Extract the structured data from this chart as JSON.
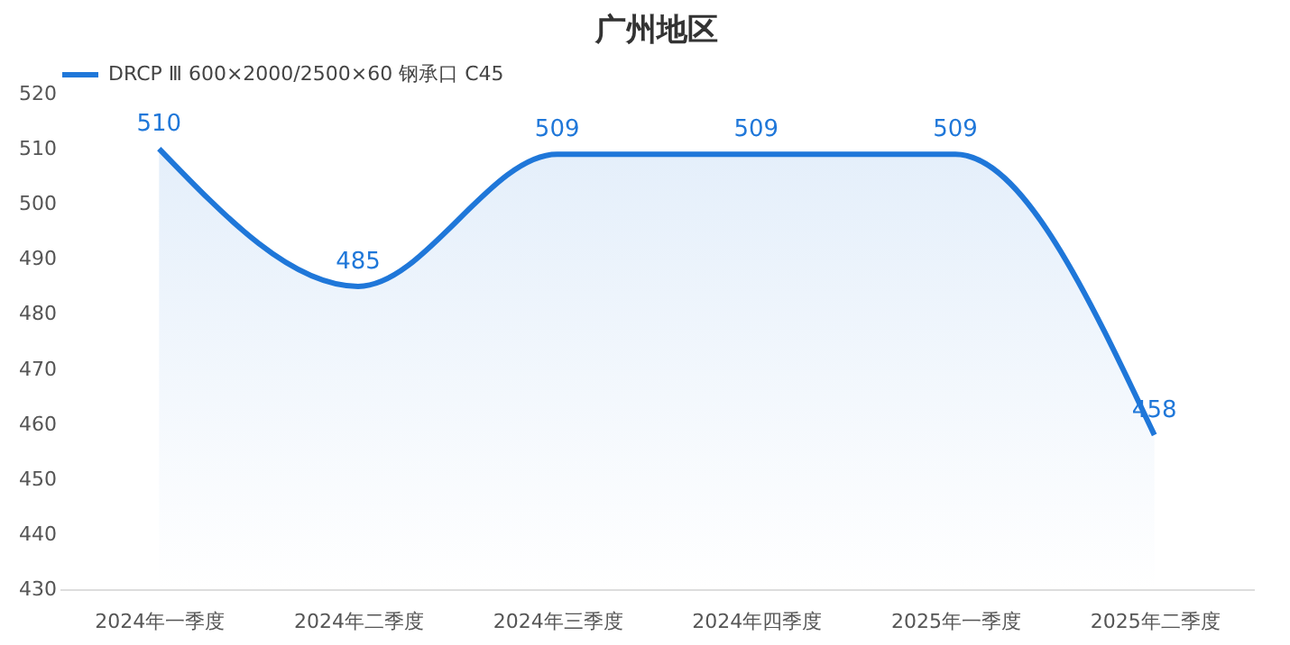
{
  "chart_data": {
    "type": "area",
    "title": "广州地区",
    "categories": [
      "2024年一季度",
      "2024年二季度",
      "2024年三季度",
      "2024年四季度",
      "2025年一季度",
      "2025年二季度"
    ],
    "series": [
      {
        "name": "DRCP Ⅲ 600×2000/2500×60 钢承口 C45",
        "color": "#1f77d9",
        "values": [
          510,
          485,
          509,
          509,
          509,
          458
        ]
      }
    ],
    "ylim": [
      430,
      520
    ],
    "yticks": [
      430,
      440,
      450,
      460,
      470,
      480,
      490,
      500,
      510,
      520
    ],
    "grid": false,
    "legend": "top",
    "data_labels": true,
    "marker": "none"
  }
}
